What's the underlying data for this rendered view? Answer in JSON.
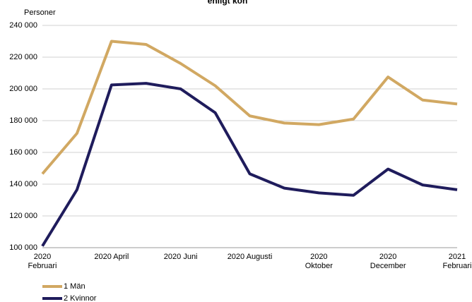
{
  "chart_data": {
    "type": "line",
    "title": "enligt kön",
    "y_label": "Personer",
    "categories": [
      "2020\nFebruari",
      null,
      "2020 April",
      null,
      "2020 Juni",
      null,
      "2020 Augusti",
      null,
      "2020\nOktober",
      null,
      "2020\nDecember",
      null,
      "2021\nFebruari"
    ],
    "series": [
      {
        "name": "1 Män",
        "color": "#d1a862",
        "values": [
          146500,
          172000,
          230000,
          228000,
          216000,
          202000,
          183000,
          178500,
          177500,
          181000,
          207500,
          193000,
          190500
        ]
      },
      {
        "name": "2 Kvinnor",
        "color": "#1f1c5c",
        "values": [
          101000,
          136500,
          202500,
          203500,
          200000,
          185000,
          146500,
          137500,
          134500,
          133000,
          149500,
          139500,
          136500
        ]
      }
    ],
    "ylim": [
      100000,
      240000
    ],
    "yticks": [
      {
        "value": 100000,
        "label": "100 000"
      },
      {
        "value": 120000,
        "label": "120 000"
      },
      {
        "value": 140000,
        "label": "140 000"
      },
      {
        "value": 160000,
        "label": "160 000"
      },
      {
        "value": 180000,
        "label": "180 000"
      },
      {
        "value": 200000,
        "label": "200 000"
      },
      {
        "value": 220000,
        "label": "220 000"
      },
      {
        "value": 240000,
        "label": "240 000"
      }
    ],
    "grid": true
  }
}
